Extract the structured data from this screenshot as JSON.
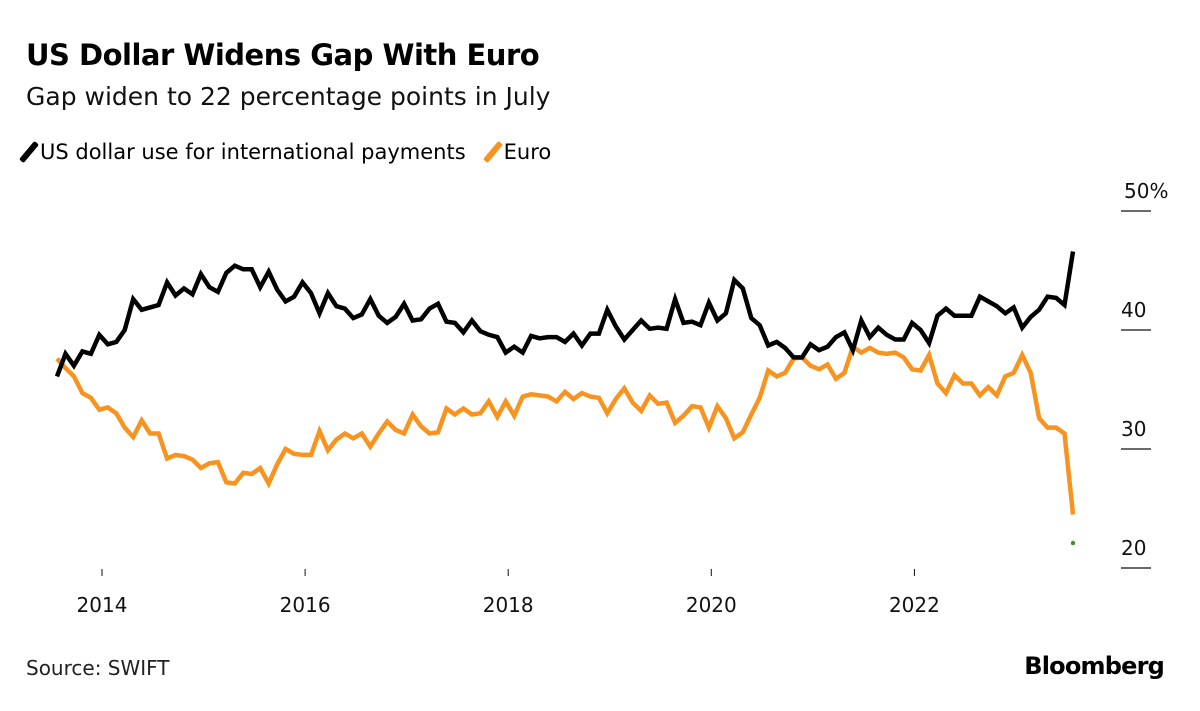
{
  "header": {
    "title": "US Dollar Widens Gap With Euro",
    "subtitle": "Gap widen to 22 percentage points in July"
  },
  "footer": {
    "source": "Source: SWIFT",
    "logo": "Bloomberg"
  },
  "chart_data": {
    "type": "line",
    "title": "US Dollar Widens Gap With Euro",
    "subtitle": "Gap widen to 22 percentage points in July",
    "xlabel": "",
    "ylabel": "",
    "x_start": "2013-07",
    "x_end": "2023-07",
    "x_frequency": "monthly",
    "x_ticks": [
      "2014",
      "2016",
      "2018",
      "2020",
      "2022"
    ],
    "x_tick_values": [
      2014,
      2016,
      2018,
      2020,
      2022
    ],
    "ylim": [
      20,
      50
    ],
    "y_ticks": [
      {
        "value": 50,
        "label": "50%"
      },
      {
        "value": 40,
        "label": "40"
      },
      {
        "value": 30,
        "label": "30"
      },
      {
        "value": 20,
        "label": "20"
      }
    ],
    "y_axis_position": "right",
    "legend_position": "top-left",
    "grid": false,
    "series": [
      {
        "name": "US dollar use for international payments",
        "color": "#000000",
        "values": [
          36.1,
          38.0,
          37.0,
          38.2,
          38.0,
          39.6,
          38.8,
          39.0,
          40.0,
          42.6,
          41.7,
          41.9,
          42.1,
          44.0,
          42.9,
          43.5,
          43.0,
          44.7,
          43.6,
          43.2,
          44.8,
          45.4,
          45.1,
          45.1,
          43.6,
          44.9,
          43.4,
          42.4,
          42.8,
          44.0,
          43.1,
          41.4,
          43.1,
          42.0,
          41.8,
          41.0,
          41.3,
          42.6,
          41.2,
          40.6,
          41.1,
          42.2,
          40.8,
          40.9,
          41.8,
          42.2,
          40.7,
          40.6,
          39.8,
          40.8,
          39.9,
          39.6,
          39.4,
          38.1,
          38.6,
          38.1,
          39.5,
          39.3,
          39.4,
          39.4,
          39.0,
          39.7,
          38.7,
          39.7,
          39.7,
          41.7,
          40.3,
          39.2,
          40.0,
          40.8,
          40.1,
          40.2,
          40.1,
          42.6,
          40.6,
          40.7,
          40.4,
          42.3,
          40.8,
          41.4,
          44.2,
          43.5,
          41.0,
          40.4,
          38.7,
          39.0,
          38.5,
          37.7,
          37.7,
          38.8,
          38.3,
          38.6,
          39.4,
          39.8,
          38.3,
          40.8,
          39.4,
          40.2,
          39.6,
          39.2,
          39.2,
          40.6,
          40.0,
          38.9,
          41.2,
          41.8,
          41.2,
          41.2,
          41.2,
          42.8,
          42.4,
          42.0,
          41.4,
          41.9,
          40.2,
          41.1,
          41.7,
          42.8,
          42.7,
          42.1,
          46.6
        ]
      },
      {
        "name": "Euro",
        "color": "#f7931e",
        "values": [
          37.6,
          36.8,
          36.1,
          34.7,
          34.3,
          33.3,
          33.5,
          33.0,
          31.8,
          31.0,
          32.4,
          31.3,
          31.3,
          29.2,
          29.5,
          29.4,
          29.1,
          28.4,
          28.8,
          28.9,
          27.2,
          27.1,
          28.0,
          27.9,
          28.4,
          27.1,
          28.7,
          30.0,
          29.6,
          29.5,
          29.5,
          31.5,
          29.9,
          30.8,
          31.3,
          30.9,
          31.3,
          30.2,
          31.3,
          32.3,
          31.6,
          31.3,
          32.9,
          31.9,
          31.3,
          31.4,
          33.4,
          32.9,
          33.4,
          32.9,
          33.0,
          34.0,
          32.7,
          34.0,
          32.8,
          34.4,
          34.6,
          34.5,
          34.4,
          34.0,
          34.8,
          34.2,
          34.7,
          34.4,
          34.3,
          33.0,
          34.2,
          35.1,
          33.9,
          33.2,
          34.5,
          33.8,
          33.9,
          32.2,
          32.8,
          33.6,
          33.5,
          31.8,
          33.6,
          32.6,
          30.9,
          31.4,
          32.9,
          34.3,
          36.6,
          36.1,
          36.4,
          37.6,
          37.7,
          37.0,
          36.7,
          37.1,
          35.9,
          36.4,
          38.6,
          38.1,
          38.5,
          38.1,
          38.0,
          38.1,
          37.7,
          36.7,
          36.6,
          37.9,
          35.5,
          34.7,
          36.2,
          35.5,
          35.5,
          34.5,
          35.2,
          34.5,
          36.1,
          36.4,
          37.9,
          36.4,
          32.6,
          31.8,
          31.8,
          31.3,
          24.5
        ]
      }
    ],
    "marker": {
      "x": "2023-07",
      "value": 22.1,
      "color": "#3f8f2f"
    }
  }
}
